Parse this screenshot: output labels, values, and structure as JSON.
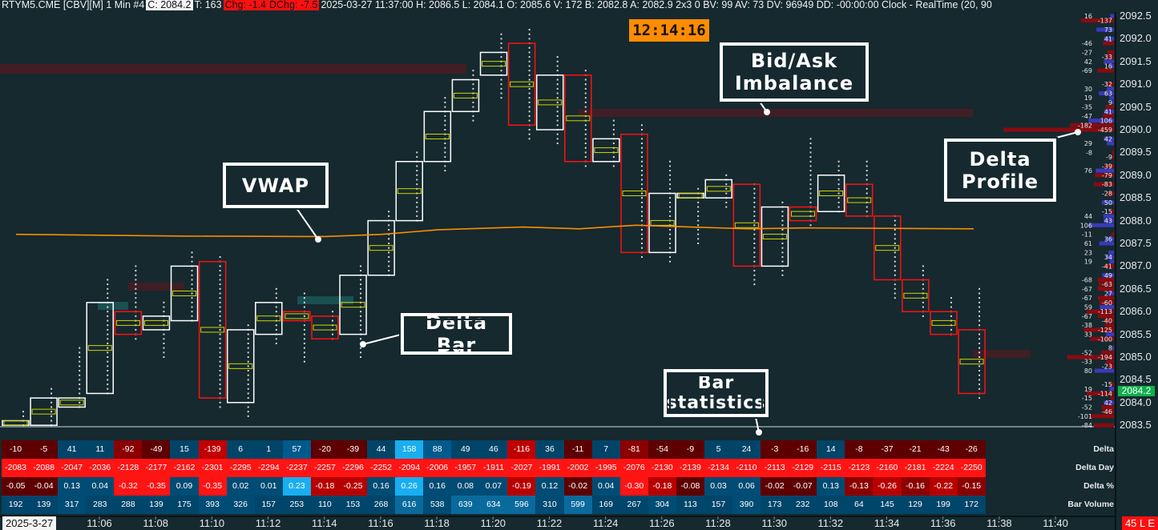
{
  "header": {
    "symbol": "RTYM5.CME [CBV][M]  1 Min  #4",
    "close": "C: 2084.2",
    "ticks": "T: 163",
    "change": "Chg: -1.4",
    "day_change": "DChg: -7.5",
    "details": "2025-03-27 11:37:00 H: 2086.5 L: 2084.1 O: 2085.6 V: 172 B: 2082.8 A: 2082.9 2x3 0 BV: 99 AV: 73 DV: 96949 DD: -00:00:00 Clock - RealTime   (20, 90"
  },
  "clock": "12:14:16",
  "annotations": {
    "imbalance": "Bid/Ask Imbalance",
    "vwap": "VWAP",
    "delta_bar": "Delta Bar",
    "bar_statistics": "Bar statistics",
    "delta_profile": "Delta Profile"
  },
  "colors": {
    "background": "#15292f",
    "up_bar": "#ffffff",
    "down_bar": "#ff1010",
    "vwap": "#ff8c00",
    "current_price": "#10b04c",
    "negative_strong": "#ff1414",
    "positive_strong": "#18aef0"
  },
  "price_axis": {
    "labels": [
      "2092.5",
      "2092.0",
      "2091.5",
      "2091.0",
      "2090.5",
      "2090.0",
      "2089.5",
      "2089.0",
      "2088.5",
      "2088.0",
      "2087.5",
      "2087.0",
      "2086.5",
      "2086.0",
      "2085.5",
      "2085.0",
      "2084.5",
      "2084.0",
      "2083.5"
    ],
    "current_price": "2084.2"
  },
  "time_axis": {
    "date": "2025-3-27",
    "labels": [
      "11:06",
      "11:08",
      "11:10",
      "11:12",
      "11:14",
      "11:16",
      "11:18",
      "11:20",
      "11:22",
      "11:24",
      "11:26",
      "11:28",
      "11:30",
      "11:32",
      "11:34",
      "11:36",
      "11:38",
      "11:40"
    ],
    "badge": "45 L E"
  },
  "chart_data": {
    "type": "candlestick",
    "ylim": [
      2083.5,
      2092.5
    ],
    "times": [
      "11:03",
      "11:04",
      "11:05",
      "11:06",
      "11:07",
      "11:08",
      "11:09",
      "11:10",
      "11:11",
      "11:12",
      "11:13",
      "11:14",
      "11:15",
      "11:16",
      "11:17",
      "11:18",
      "11:19",
      "11:20",
      "11:21",
      "11:22",
      "11:23",
      "11:24",
      "11:25",
      "11:26",
      "11:27",
      "11:28",
      "11:29",
      "11:30",
      "11:31",
      "11:32",
      "11:33",
      "11:34",
      "11:35",
      "11:36",
      "11:37"
    ],
    "ohlc": [
      [
        2083.5,
        2083.8,
        2083.5,
        2083.6
      ],
      [
        2083.5,
        2084.3,
        2083.5,
        2084.1
      ],
      [
        2083.9,
        2085.2,
        2083.9,
        2084.1
      ],
      [
        2084.2,
        2086.7,
        2084.2,
        2086.2
      ],
      [
        2086.0,
        2087.0,
        2085.4,
        2085.5
      ],
      [
        2085.6,
        2086.2,
        2085.0,
        2085.9
      ],
      [
        2085.8,
        2087.3,
        2085.8,
        2087.0
      ],
      [
        2087.1,
        2087.2,
        2083.9,
        2084.1
      ],
      [
        2084.0,
        2085.7,
        2083.7,
        2085.6
      ],
      [
        2085.5,
        2086.5,
        2085.3,
        2086.2
      ],
      [
        2086.0,
        2086.4,
        2084.9,
        2085.8
      ],
      [
        2085.9,
        2086.0,
        2085.4,
        2085.4
      ],
      [
        2085.5,
        2087.0,
        2085.0,
        2086.8
      ],
      [
        2086.8,
        2088.2,
        2086.8,
        2088.0
      ],
      [
        2088.0,
        2089.5,
        2088.0,
        2089.3
      ],
      [
        2089.3,
        2090.7,
        2089.1,
        2090.4
      ],
      [
        2090.4,
        2091.3,
        2090.2,
        2091.1
      ],
      [
        2091.2,
        2092.1,
        2090.7,
        2091.7
      ],
      [
        2091.9,
        2092.2,
        2089.8,
        2090.1
      ],
      [
        2090.0,
        2091.6,
        2089.7,
        2091.2
      ],
      [
        2091.2,
        2091.3,
        2089.2,
        2089.3
      ],
      [
        2089.3,
        2090.2,
        2089.2,
        2089.8
      ],
      [
        2089.9,
        2090.1,
        2087.2,
        2087.3
      ],
      [
        2087.3,
        2089.3,
        2087.1,
        2088.6
      ],
      [
        2088.5,
        2088.7,
        2087.5,
        2088.6
      ],
      [
        2088.5,
        2089.0,
        2088.3,
        2088.9
      ],
      [
        2088.8,
        2088.8,
        2086.6,
        2087.0
      ],
      [
        2087.0,
        2088.4,
        2086.8,
        2088.3
      ],
      [
        2088.3,
        2089.8,
        2087.9,
        2088.0
      ],
      [
        2088.2,
        2089.3,
        2088.2,
        2089.0
      ],
      [
        2088.8,
        2089.3,
        2088.1,
        2088.1
      ],
      [
        2088.1,
        2088.1,
        2086.3,
        2086.7
      ],
      [
        2086.7,
        2087.0,
        2085.9,
        2086.0
      ],
      [
        2086.0,
        2086.3,
        2085.5,
        2085.5
      ],
      [
        2085.6,
        2086.5,
        2084.1,
        2084.2
      ]
    ],
    "vwap": [
      [
        0,
        2087.7
      ],
      [
        6,
        2087.66
      ],
      [
        11,
        2087.65
      ],
      [
        13,
        2087.7
      ],
      [
        15,
        2087.8
      ],
      [
        18,
        2087.86
      ],
      [
        20,
        2087.82
      ],
      [
        22,
        2087.9
      ],
      [
        26,
        2087.82
      ],
      [
        28,
        2087.84
      ],
      [
        34,
        2087.82
      ]
    ]
  },
  "delta_profile": [
    [
      "2092.5",
      16
    ],
    [
      "2092.4",
      -137
    ],
    [
      "2092.2",
      73
    ],
    [
      "2092.0",
      41
    ],
    [
      "2091.9",
      -46
    ],
    [
      "2091.7",
      -27
    ],
    [
      "2091.6",
      -33
    ],
    [
      "2091.5",
      42
    ],
    [
      "2091.4",
      16
    ],
    [
      "2091.3",
      -69
    ],
    [
      "2091.0",
      -32
    ],
    [
      "2090.9",
      30
    ],
    [
      "2090.8",
      63
    ],
    [
      "2090.7",
      19
    ],
    [
      "2090.6",
      9
    ],
    [
      "2090.5",
      -35
    ],
    [
      "2090.4",
      41
    ],
    [
      "2090.3",
      -47
    ],
    [
      "2090.2",
      106
    ],
    [
      "2090.1",
      -182
    ],
    [
      "2090.0",
      -459
    ],
    [
      "2089.8",
      42
    ],
    [
      "2089.7",
      29
    ],
    [
      "2089.5",
      -8
    ],
    [
      "2089.4",
      -9
    ],
    [
      "2089.2",
      -39
    ],
    [
      "2089.1",
      76
    ],
    [
      "2089.0",
      -79
    ],
    [
      "2088.8",
      -83
    ],
    [
      "2088.6",
      -28
    ],
    [
      "2088.4",
      50
    ],
    [
      "2088.2",
      -15
    ],
    [
      "2088.1",
      44
    ],
    [
      "2088.0",
      43
    ],
    [
      "2087.9",
      106
    ],
    [
      "2087.7",
      -11
    ],
    [
      "2087.6",
      36
    ],
    [
      "2087.5",
      61
    ],
    [
      "2087.3",
      23
    ],
    [
      "2087.2",
      34
    ],
    [
      "2087.1",
      19
    ],
    [
      "2087.0",
      -41
    ],
    [
      "2086.8",
      49
    ],
    [
      "2086.7",
      -68
    ],
    [
      "2086.6",
      -63
    ],
    [
      "2086.5",
      -67
    ],
    [
      "2086.4",
      27
    ],
    [
      "2086.3",
      -67
    ],
    [
      "2086.2",
      -60
    ],
    [
      "2086.1",
      59
    ],
    [
      "2086.0",
      -113
    ],
    [
      "2085.9",
      -67
    ],
    [
      "2085.8",
      -40
    ],
    [
      "2085.7",
      -38
    ],
    [
      "2085.6",
      -125
    ],
    [
      "2085.5",
      33
    ],
    [
      "2085.4",
      -100
    ],
    [
      "2085.2",
      8
    ],
    [
      "2085.1",
      -52
    ],
    [
      "2085.0",
      -194
    ],
    [
      "2084.9",
      -33
    ],
    [
      "2084.8",
      -23
    ],
    [
      "2084.7",
      80
    ],
    [
      "2084.4",
      -15
    ],
    [
      "2084.3",
      19
    ],
    [
      "2084.2",
      -114
    ],
    [
      "2084.1",
      -15
    ],
    [
      "2084.0",
      42
    ],
    [
      "2083.9",
      -52
    ],
    [
      "2083.8",
      -46
    ],
    [
      "2083.7",
      -101
    ],
    [
      "2083.5",
      -84
    ]
  ],
  "table": {
    "rows": [
      {
        "label": "Delta",
        "key": "delta",
        "values": [
          "-10",
          "-5",
          "41",
          "11",
          "-92",
          "-49",
          "15",
          "-139",
          "6",
          "1",
          "57",
          "-20",
          "-39",
          "44",
          "158",
          "88",
          "49",
          "46",
          "-116",
          "36",
          "-11",
          "7",
          "-81",
          "-54",
          "-9",
          "5",
          "24",
          "-3",
          "-16",
          "14",
          "-8",
          "-37",
          "-21",
          "-43",
          "-26"
        ]
      },
      {
        "label": "Delta Day",
        "key": "dday",
        "values": [
          "-2083",
          "-2088",
          "-2047",
          "-2036",
          "-2128",
          "-2177",
          "-2162",
          "-2301",
          "-2295",
          "-2294",
          "-2237",
          "-2257",
          "-2296",
          "-2252",
          "-2094",
          "-2006",
          "-1957",
          "-1911",
          "-2027",
          "-1991",
          "-2002",
          "-1995",
          "-2076",
          "-2130",
          "-2139",
          "-2134",
          "-2110",
          "-2113",
          "-2129",
          "-2115",
          "-2123",
          "-2160",
          "-2181",
          "-2224",
          "-2250"
        ]
      },
      {
        "label": "Delta %",
        "key": "dpct",
        "values": [
          "-0.05",
          "-0.04",
          "0.13",
          "0.04",
          "-0.32",
          "-0.35",
          "0.09",
          "-0.35",
          "0.02",
          "0.01",
          "0.23",
          "-0.18",
          "-0.25",
          "0.16",
          "0.26",
          "0.16",
          "0.08",
          "0.07",
          "-0.19",
          "0.12",
          "-0.02",
          "0.04",
          "-0.30",
          "-0.18",
          "-0.08",
          "0.03",
          "0.06",
          "-0.02",
          "-0.07",
          "0.13",
          "-0.13",
          "-0.26",
          "-0.16",
          "-0.22",
          "-0.15"
        ]
      },
      {
        "label": "Bar Volume",
        "key": "vol",
        "values": [
          "192",
          "139",
          "317",
          "283",
          "288",
          "139",
          "175",
          "393",
          "326",
          "157",
          "253",
          "110",
          "153",
          "268",
          "616",
          "538",
          "639",
          "634",
          "596",
          "310",
          "599",
          "169",
          "267",
          "304",
          "113",
          "157",
          "390",
          "173",
          "232",
          "108",
          "64",
          "145",
          "129",
          "199",
          "172"
        ]
      }
    ]
  }
}
